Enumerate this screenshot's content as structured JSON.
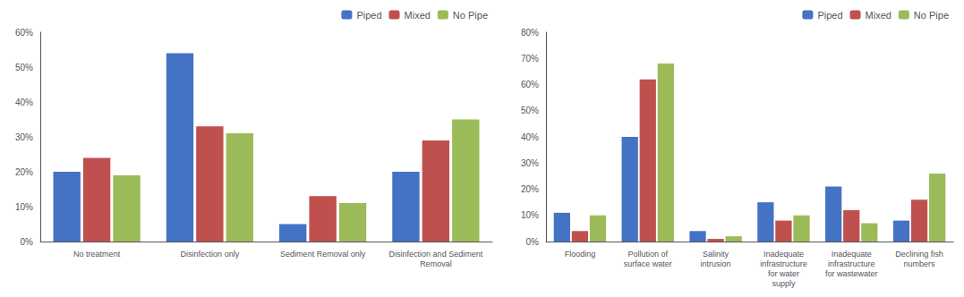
{
  "chart_data": [
    {
      "type": "bar",
      "categories": [
        "No treatment",
        "Disinfection only",
        "Sediment Removal only",
        "Disinfection and Sediment\nRemoval"
      ],
      "series": [
        {
          "name": "Piped",
          "color": "#4472C4",
          "values": [
            0.2,
            0.54,
            0.05,
            0.2
          ]
        },
        {
          "name": "Mixed",
          "color": "#C0504D",
          "values": [
            0.24,
            0.33,
            0.13,
            0.29
          ]
        },
        {
          "name": "No Pipe",
          "color": "#9BBB59",
          "values": [
            0.19,
            0.31,
            0.11,
            0.35
          ]
        }
      ],
      "ylim": [
        0,
        0.6
      ],
      "yticks": [
        {
          "value": 0,
          "label": "0%"
        },
        {
          "value": 0.1,
          "label": "10%"
        },
        {
          "value": 0.2,
          "label": "20%"
        },
        {
          "value": 0.3,
          "label": "30%"
        },
        {
          "value": 0.4,
          "label": "40%"
        },
        {
          "value": 0.5,
          "label": "50%"
        },
        {
          "value": 0.6,
          "label": "60%"
        }
      ],
      "grid": false,
      "legend": "upper right"
    },
    {
      "type": "bar",
      "categories": [
        "Flooding",
        "Pollution of\nsurface water",
        "Salinity\nintrusion",
        "Inadequate\ninfrastructure\nfor water\nsupply",
        "Inadequate\ninfrastructure\nfor wastewater",
        "Declining fish\nnumbers"
      ],
      "series": [
        {
          "name": "Piped",
          "color": "#4472C4",
          "values": [
            0.11,
            0.4,
            0.04,
            0.15,
            0.21,
            0.08
          ]
        },
        {
          "name": "Mixed",
          "color": "#C0504D",
          "values": [
            0.04,
            0.62,
            0.01,
            0.08,
            0.12,
            0.16
          ]
        },
        {
          "name": "No Pipe",
          "color": "#9BBB59",
          "values": [
            0.1,
            0.68,
            0.02,
            0.1,
            0.07,
            0.26
          ]
        }
      ],
      "ylim": [
        0,
        0.8
      ],
      "yticks": [
        {
          "value": 0,
          "label": "0%"
        },
        {
          "value": 0.1,
          "label": "10%"
        },
        {
          "value": 0.2,
          "label": "20%"
        },
        {
          "value": 0.3,
          "label": "30%"
        },
        {
          "value": 0.4,
          "label": "40%"
        },
        {
          "value": 0.5,
          "label": "50%"
        },
        {
          "value": 0.6,
          "label": "60%"
        },
        {
          "value": 0.7,
          "label": "70%"
        },
        {
          "value": 0.8,
          "label": "80%"
        }
      ],
      "grid": false,
      "legend": "upper right"
    }
  ]
}
